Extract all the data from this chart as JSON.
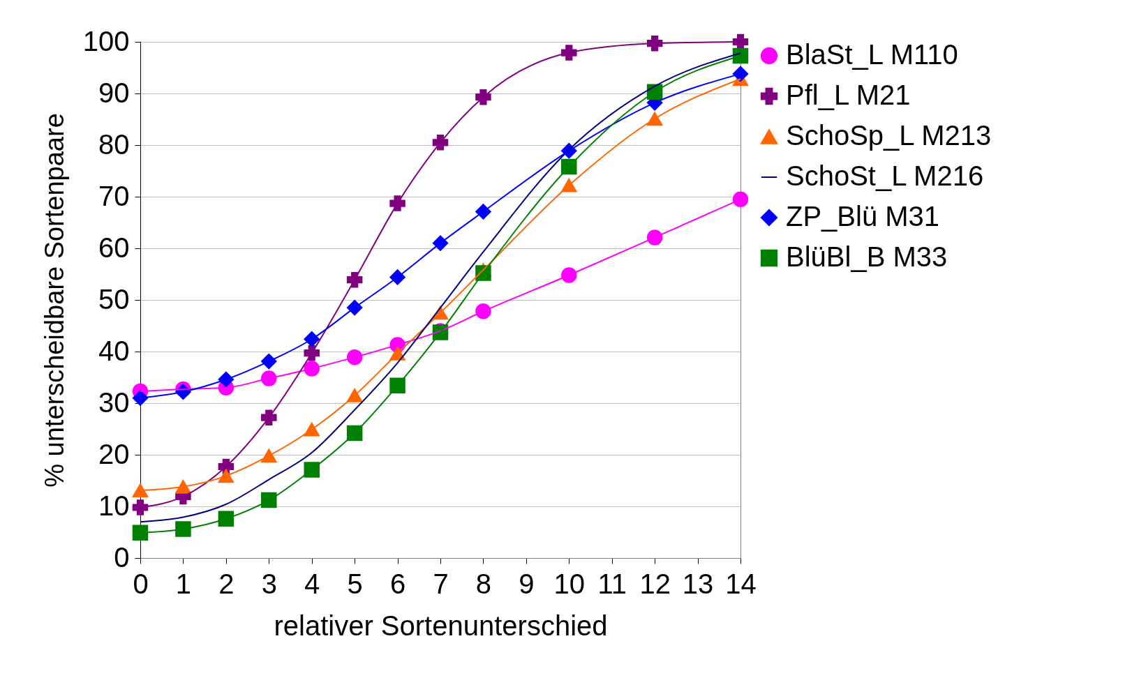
{
  "chart_data": {
    "type": "line",
    "xlabel": "relativer Sortenunterschied",
    "ylabel": "% unterscheidbare Sortenpaare",
    "xlim": [
      0,
      14
    ],
    "xticks": [
      0,
      1,
      2,
      3,
      4,
      5,
      6,
      7,
      8,
      9,
      10,
      11,
      12,
      13,
      14
    ],
    "ylim": [
      0,
      100
    ],
    "yticks": [
      0,
      10,
      20,
      30,
      40,
      50,
      60,
      70,
      80,
      90,
      100
    ],
    "grid": "y",
    "legend": "right",
    "x": [
      0,
      1,
      2,
      3,
      4,
      5,
      6,
      7,
      8,
      10,
      12,
      14
    ],
    "series": [
      {
        "name": "BlaSt_L M110",
        "color": "#ff00ff",
        "marker": "circle",
        "values": [
          32.3,
          32.7,
          33,
          34.8,
          36.7,
          38.9,
          41.3,
          44,
          47.8,
          54.8,
          62.1,
          69.5
        ]
      },
      {
        "name": "Pfl_L M21",
        "color": "#800080",
        "marker": "cross",
        "values": [
          9.8,
          11.9,
          17.7,
          27.2,
          39.7,
          53.9,
          68.7,
          80.5,
          89.3,
          97.9,
          99.7,
          100
        ]
      },
      {
        "name": "SchoSp_L M213",
        "color": "#ff6600",
        "marker": "triangle",
        "values": [
          13.1,
          13.8,
          15.9,
          19.8,
          24.9,
          31.5,
          39.6,
          47.5,
          55.8,
          72.2,
          85.1,
          92.8
        ]
      },
      {
        "name": "SchoSt_L M216",
        "color": "#000080",
        "marker": "none",
        "values": [
          7,
          7.9,
          10.4,
          15.2,
          20.4,
          28.7,
          37.8,
          48.5,
          59.3,
          79.1,
          91.4,
          97.8
        ]
      },
      {
        "name": "ZP_Blü M31",
        "color": "#0000ff",
        "marker": "diamond",
        "values": [
          31,
          32.2,
          34.6,
          38.1,
          42.4,
          48.5,
          54.4,
          61,
          67.1,
          78.9,
          88.2,
          93.8
        ]
      },
      {
        "name": "BlüBl_B M33",
        "color": "#008000",
        "marker": "square",
        "values": [
          4.9,
          5.6,
          7.6,
          11.2,
          17.1,
          24.2,
          33.4,
          43.7,
          55.2,
          75.8,
          90.3,
          97.3
        ]
      }
    ]
  }
}
